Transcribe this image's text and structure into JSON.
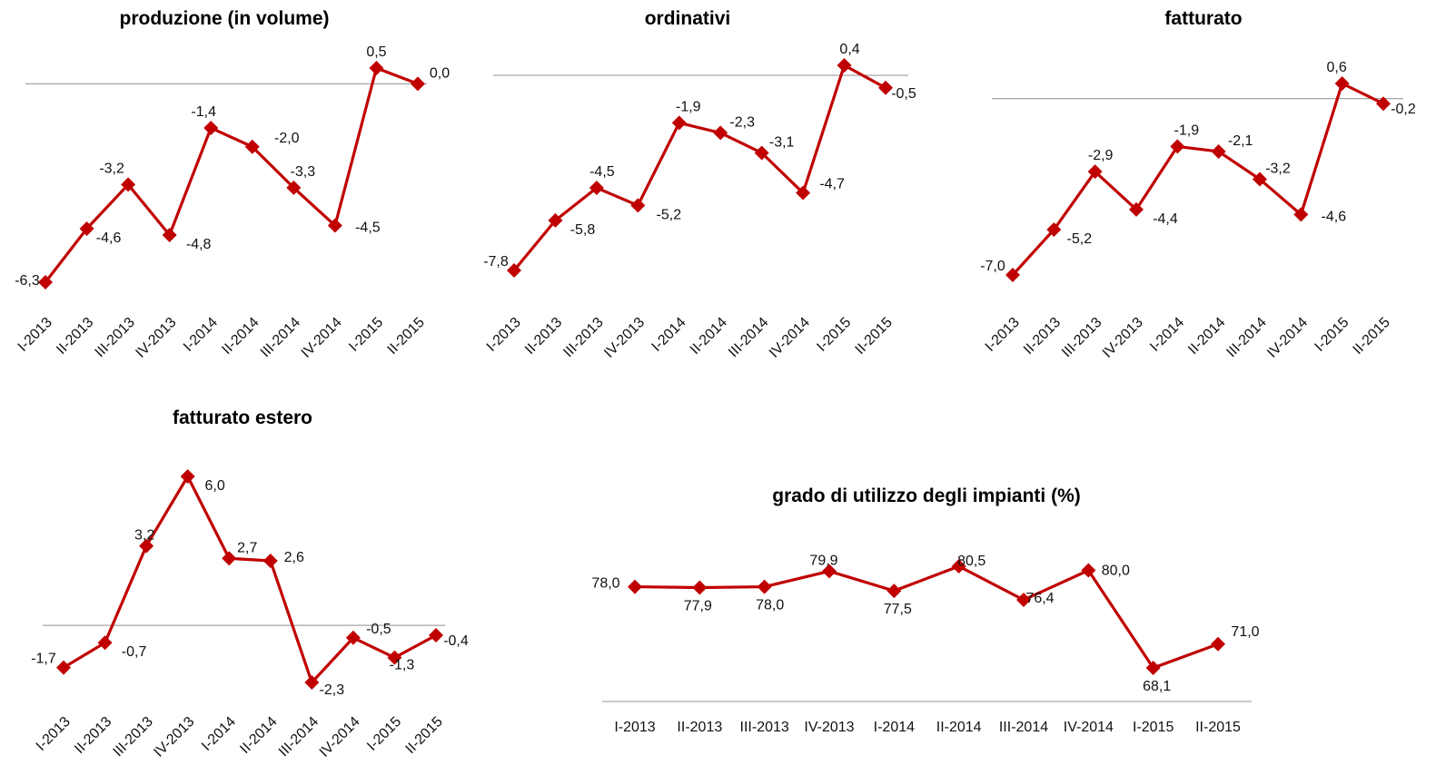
{
  "chart_data": [
    {
      "type": "line",
      "title": "produzione (in volume)",
      "categories": [
        "I-2013",
        "II-2013",
        "III-2013",
        "IV-2013",
        "I-2014",
        "II-2014",
        "III-2014",
        "IV-2014",
        "I-2015",
        "II-2015"
      ],
      "values": [
        -6.3,
        -4.6,
        -3.2,
        -4.8,
        -1.4,
        -2.0,
        -3.3,
        -4.5,
        0.5,
        0.0
      ],
      "labels": [
        "-6,3",
        "-4,6",
        "-3,2",
        "-4,8",
        "-1,4",
        "-2,0",
        "-3,3",
        "-4,5",
        "0,5",
        "0,0"
      ],
      "tick_rotation": "diagonal",
      "color": "#c00000",
      "marker": "diamond",
      "zero_line": true
    },
    {
      "type": "line",
      "title": "ordinativi",
      "categories": [
        "I-2013",
        "II-2013",
        "III-2013",
        "IV-2013",
        "I-2014",
        "II-2014",
        "III-2014",
        "IV-2014",
        "I-2015",
        "II-2015"
      ],
      "values": [
        -7.8,
        -5.8,
        -4.5,
        -5.2,
        -1.9,
        -2.3,
        -3.1,
        -4.7,
        0.4,
        -0.5
      ],
      "labels": [
        "-7,8",
        "-5,8",
        "-4,5",
        "-5,2",
        "-1,9",
        "-2,3",
        "-3,1",
        "-4,7",
        "0,4",
        "-0,5"
      ],
      "tick_rotation": "diagonal",
      "color": "#c00000",
      "marker": "diamond",
      "zero_line": true
    },
    {
      "type": "line",
      "title": "fatturato",
      "categories": [
        "I-2013",
        "II-2013",
        "III-2013",
        "IV-2013",
        "I-2014",
        "II-2014",
        "III-2014",
        "IV-2014",
        "I-2015",
        "II-2015"
      ],
      "values": [
        -7.0,
        -5.2,
        -2.9,
        -4.4,
        -1.9,
        -2.1,
        -3.2,
        -4.6,
        0.6,
        -0.2
      ],
      "labels": [
        "-7,0",
        "-5,2",
        "-2,9",
        "-4,4",
        "-1,9",
        "-2,1",
        "-3,2",
        "-4,6",
        "0,6",
        "-0,2"
      ],
      "tick_rotation": "diagonal",
      "color": "#c00000",
      "marker": "diamond",
      "zero_line": true
    },
    {
      "type": "line",
      "title": "fatturato estero",
      "categories": [
        "I-2013",
        "II-2013",
        "III-2013",
        "IV-2013",
        "I-2014",
        "II-2014",
        "III-2014",
        "IV-2014",
        "I-2015",
        "II-2015"
      ],
      "values": [
        -1.7,
        -0.7,
        3.2,
        6.0,
        2.7,
        2.6,
        -2.3,
        -0.5,
        -1.3,
        -0.4
      ],
      "labels": [
        "-1,7",
        "-0,7",
        "3,2",
        "6,0",
        "2,7",
        "2,6",
        "-2,3",
        "-0,5",
        "-1,3",
        "-0,4"
      ],
      "tick_rotation": "diagonal",
      "color": "#c00000",
      "marker": "diamond",
      "zero_line": true
    },
    {
      "type": "line",
      "title": "grado di utilizzo degli impianti (%)",
      "categories": [
        "I-2013",
        "II-2013",
        "III-2013",
        "IV-2013",
        "I-2014",
        "II-2014",
        "III-2014",
        "IV-2014",
        "I-2015",
        "II-2015"
      ],
      "values": [
        78.0,
        77.9,
        78.0,
        79.9,
        77.5,
        80.5,
        76.4,
        80.0,
        68.1,
        71.0
      ],
      "labels": [
        "78,0",
        "77,9",
        "78,0",
        "79,9",
        "77,5",
        "80,5",
        "76,4",
        "80,0",
        "68,1",
        "71,0"
      ],
      "tick_rotation": "horizontal",
      "color": "#c00000",
      "marker": "diamond",
      "zero_line": false
    }
  ]
}
